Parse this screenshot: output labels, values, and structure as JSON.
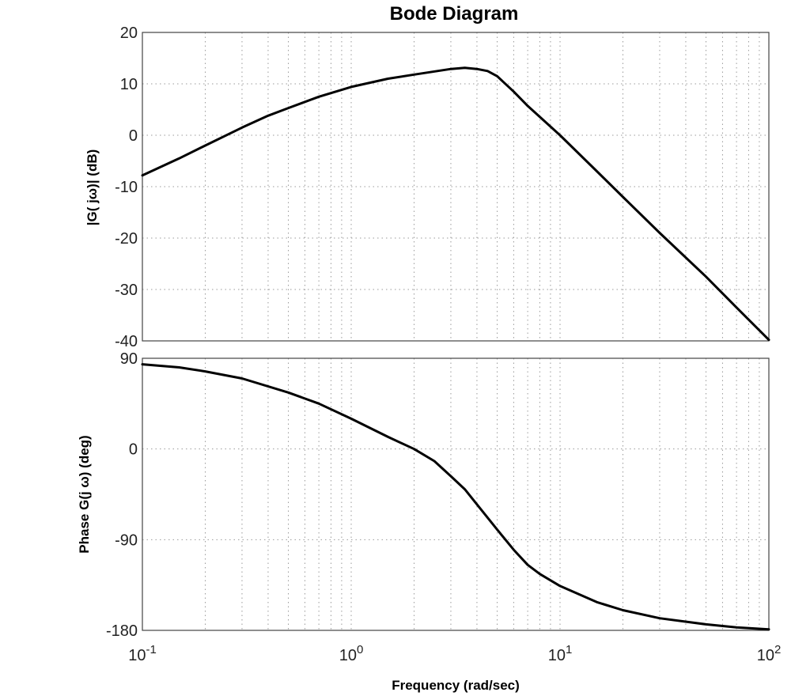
{
  "chart_data": [
    {
      "type": "line",
      "title": "Bode Diagram",
      "ylabel": "|G( jω)| (dB)",
      "xscale": "log",
      "xlim": [
        0.1,
        100
      ],
      "ylim": [
        -40,
        20
      ],
      "yticks": [
        "20",
        "10",
        "0",
        "-10",
        "-20",
        "-30",
        "-40"
      ],
      "grid": true,
      "series": [
        {
          "x": [
            0.1,
            0.15,
            0.2,
            0.3,
            0.4,
            0.5,
            0.7,
            1,
            1.5,
            2,
            3,
            3.5,
            4,
            4.5,
            5,
            6,
            7,
            10,
            15,
            20,
            30,
            50,
            70,
            100
          ],
          "y": [
            -7.8,
            -4.5,
            -2,
            1.5,
            3.8,
            5.3,
            7.5,
            9.4,
            11,
            11.8,
            12.9,
            13.1,
            12.9,
            12.5,
            11.5,
            8.5,
            5.7,
            0,
            -7,
            -12,
            -19,
            -27.5,
            -33.5,
            -39.8
          ]
        }
      ]
    },
    {
      "type": "line",
      "ylabel": "Phase G(j ω) (deg)",
      "xlabel": "Frequency  (rad/sec)",
      "xscale": "log",
      "xlim": [
        0.1,
        100
      ],
      "ylim": [
        -180,
        90
      ],
      "yticks": [
        "90",
        "0",
        "-90",
        "-180"
      ],
      "xticks": [
        {
          "base": "10",
          "exp": "-1"
        },
        {
          "base": "10",
          "exp": "0"
        },
        {
          "base": "10",
          "exp": "1"
        },
        {
          "base": "10",
          "exp": "2"
        }
      ],
      "grid": true,
      "series": [
        {
          "x": [
            0.1,
            0.15,
            0.2,
            0.3,
            0.5,
            0.7,
            1,
            1.5,
            2,
            2.5,
            3,
            3.5,
            4,
            5,
            6,
            7,
            8,
            10,
            15,
            20,
            30,
            50,
            70,
            100
          ],
          "y": [
            84,
            81,
            77,
            70,
            56,
            45,
            30,
            12,
            0,
            -12,
            -27,
            -40,
            -55,
            -80,
            -100,
            -115,
            -124,
            -136,
            -152,
            -160,
            -168,
            -174,
            -177,
            -179
          ]
        }
      ]
    }
  ]
}
